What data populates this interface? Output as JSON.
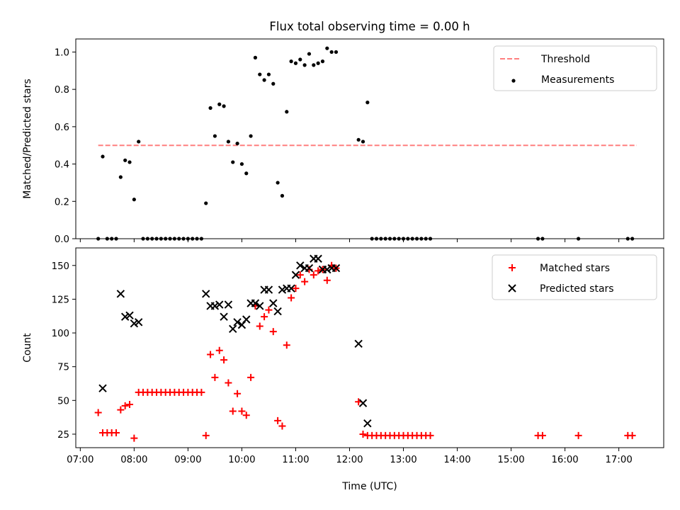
{
  "chart_data": [
    {
      "type": "scatter",
      "title": "Flux total observing time = 0.00 h",
      "xlabel": "",
      "ylabel": "Matched/Predicted stars",
      "xlim": [
        "06:55",
        "17:50"
      ],
      "ylim": [
        0,
        1.07
      ],
      "yticks": [
        0.0,
        0.2,
        0.4,
        0.6,
        0.8,
        1.0
      ],
      "ytick_labels": [
        "0.0",
        "0.2",
        "0.4",
        "0.6",
        "0.8",
        "1.0"
      ],
      "legend_position": "upper right",
      "threshold": {
        "name": "Threshold",
        "value": 0.5,
        "x_range": [
          "07:20",
          "17:20"
        ],
        "color": "#ff7f7f",
        "style": "dashed"
      },
      "series": [
        {
          "name": "Measurements",
          "color": "#000000",
          "marker": "dot",
          "points": [
            [
              "07:20",
              0.0
            ],
            [
              "07:25",
              0.44
            ],
            [
              "07:30",
              0.0
            ],
            [
              "07:35",
              0.0
            ],
            [
              "07:40",
              0.0
            ],
            [
              "07:45",
              0.33
            ],
            [
              "07:50",
              0.42
            ],
            [
              "07:55",
              0.41
            ],
            [
              "08:00",
              0.21
            ],
            [
              "08:05",
              0.52
            ],
            [
              "08:10",
              0.0
            ],
            [
              "08:15",
              0.0
            ],
            [
              "08:20",
              0.0
            ],
            [
              "08:25",
              0.0
            ],
            [
              "08:30",
              0.0
            ],
            [
              "08:35",
              0.0
            ],
            [
              "08:40",
              0.0
            ],
            [
              "08:45",
              0.0
            ],
            [
              "08:50",
              0.0
            ],
            [
              "08:55",
              0.0
            ],
            [
              "09:00",
              0.0
            ],
            [
              "09:05",
              0.0
            ],
            [
              "09:10",
              0.0
            ],
            [
              "09:15",
              0.0
            ],
            [
              "09:20",
              0.19
            ],
            [
              "09:25",
              0.7
            ],
            [
              "09:30",
              0.55
            ],
            [
              "09:35",
              0.72
            ],
            [
              "09:40",
              0.71
            ],
            [
              "09:45",
              0.52
            ],
            [
              "09:50",
              0.41
            ],
            [
              "09:55",
              0.51
            ],
            [
              "10:00",
              0.4
            ],
            [
              "10:05",
              0.35
            ],
            [
              "10:10",
              0.55
            ],
            [
              "10:15",
              0.97
            ],
            [
              "10:20",
              0.88
            ],
            [
              "10:25",
              0.85
            ],
            [
              "10:30",
              0.88
            ],
            [
              "10:35",
              0.83
            ],
            [
              "10:40",
              0.3
            ],
            [
              "10:45",
              0.23
            ],
            [
              "10:50",
              0.68
            ],
            [
              "10:55",
              0.95
            ],
            [
              "11:00",
              0.94
            ],
            [
              "11:05",
              0.96
            ],
            [
              "11:10",
              0.93
            ],
            [
              "11:15",
              0.99
            ],
            [
              "11:20",
              0.93
            ],
            [
              "11:25",
              0.94
            ],
            [
              "11:30",
              0.95
            ],
            [
              "11:35",
              1.02
            ],
            [
              "11:40",
              1.0
            ],
            [
              "11:45",
              1.0
            ],
            [
              "12:10",
              0.53
            ],
            [
              "12:15",
              0.52
            ],
            [
              "12:20",
              0.73
            ],
            [
              "12:25",
              0.0
            ],
            [
              "12:30",
              0.0
            ],
            [
              "12:35",
              0.0
            ],
            [
              "12:40",
              0.0
            ],
            [
              "12:45",
              0.0
            ],
            [
              "12:50",
              0.0
            ],
            [
              "12:55",
              0.0
            ],
            [
              "13:00",
              0.0
            ],
            [
              "13:05",
              0.0
            ],
            [
              "13:10",
              0.0
            ],
            [
              "13:15",
              0.0
            ],
            [
              "13:20",
              0.0
            ],
            [
              "13:25",
              0.0
            ],
            [
              "13:30",
              0.0
            ],
            [
              "15:30",
              0.0
            ],
            [
              "15:35",
              0.0
            ],
            [
              "16:15",
              0.0
            ],
            [
              "17:10",
              0.0
            ],
            [
              "17:15",
              0.0
            ]
          ]
        }
      ]
    },
    {
      "type": "scatter",
      "title": "",
      "xlabel": "Time (UTC)",
      "ylabel": "Count",
      "xlim": [
        "06:55",
        "17:50"
      ],
      "ylim": [
        15,
        163
      ],
      "xticks": [
        "07:00",
        "08:00",
        "09:00",
        "10:00",
        "11:00",
        "12:00",
        "13:00",
        "14:00",
        "15:00",
        "16:00",
        "17:00"
      ],
      "yticks": [
        25,
        50,
        75,
        100,
        125,
        150
      ],
      "ytick_labels": [
        "25",
        "50",
        "75",
        "100",
        "125",
        "150"
      ],
      "legend_position": "upper right",
      "series": [
        {
          "name": "Matched stars",
          "color": "#ff0000",
          "marker": "plus",
          "points": [
            [
              "07:20",
              41
            ],
            [
              "07:25",
              26
            ],
            [
              "07:30",
              26
            ],
            [
              "07:35",
              26
            ],
            [
              "07:40",
              26
            ],
            [
              "07:45",
              43
            ],
            [
              "07:50",
              46
            ],
            [
              "07:55",
              47
            ],
            [
              "08:00",
              22
            ],
            [
              "08:05",
              56
            ],
            [
              "08:10",
              56
            ],
            [
              "08:15",
              56
            ],
            [
              "08:20",
              56
            ],
            [
              "08:25",
              56
            ],
            [
              "08:30",
              56
            ],
            [
              "08:35",
              56
            ],
            [
              "08:40",
              56
            ],
            [
              "08:45",
              56
            ],
            [
              "08:50",
              56
            ],
            [
              "08:55",
              56
            ],
            [
              "09:00",
              56
            ],
            [
              "09:05",
              56
            ],
            [
              "09:10",
              56
            ],
            [
              "09:15",
              56
            ],
            [
              "09:20",
              24
            ],
            [
              "09:25",
              84
            ],
            [
              "09:30",
              67
            ],
            [
              "09:35",
              87
            ],
            [
              "09:40",
              80
            ],
            [
              "09:45",
              63
            ],
            [
              "09:50",
              42
            ],
            [
              "09:55",
              55
            ],
            [
              "10:00",
              42
            ],
            [
              "10:05",
              39
            ],
            [
              "10:10",
              67
            ],
            [
              "10:15",
              120
            ],
            [
              "10:20",
              105
            ],
            [
              "10:25",
              112
            ],
            [
              "10:30",
              117
            ],
            [
              "10:35",
              101
            ],
            [
              "10:40",
              35
            ],
            [
              "10:45",
              31
            ],
            [
              "10:50",
              91
            ],
            [
              "10:55",
              126
            ],
            [
              "11:00",
              133
            ],
            [
              "11:05",
              143
            ],
            [
              "11:10",
              138
            ],
            [
              "11:15",
              147
            ],
            [
              "11:20",
              143
            ],
            [
              "11:25",
              146
            ],
            [
              "11:30",
              147
            ],
            [
              "11:35",
              139
            ],
            [
              "11:40",
              150
            ],
            [
              "11:45",
              148
            ],
            [
              "12:10",
              49
            ],
            [
              "12:15",
              25
            ],
            [
              "12:20",
              24
            ],
            [
              "12:25",
              24
            ],
            [
              "12:30",
              24
            ],
            [
              "12:35",
              24
            ],
            [
              "12:40",
              24
            ],
            [
              "12:45",
              24
            ],
            [
              "12:50",
              24
            ],
            [
              "12:55",
              24
            ],
            [
              "13:00",
              24
            ],
            [
              "13:05",
              24
            ],
            [
              "13:10",
              24
            ],
            [
              "13:15",
              24
            ],
            [
              "13:20",
              24
            ],
            [
              "13:25",
              24
            ],
            [
              "13:30",
              24
            ],
            [
              "15:30",
              24
            ],
            [
              "15:35",
              24
            ],
            [
              "16:15",
              24
            ],
            [
              "17:10",
              24
            ],
            [
              "17:15",
              24
            ]
          ]
        },
        {
          "name": "Predicted stars",
          "color": "#000000",
          "marker": "x",
          "points": [
            [
              "07:25",
              59
            ],
            [
              "07:45",
              129
            ],
            [
              "07:50",
              112
            ],
            [
              "07:55",
              113
            ],
            [
              "08:00",
              107
            ],
            [
              "08:05",
              108
            ],
            [
              "09:20",
              129
            ],
            [
              "09:25",
              120
            ],
            [
              "09:30",
              120
            ],
            [
              "09:35",
              121
            ],
            [
              "09:40",
              112
            ],
            [
              "09:45",
              121
            ],
            [
              "09:50",
              103
            ],
            [
              "09:55",
              108
            ],
            [
              "10:00",
              106
            ],
            [
              "10:05",
              110
            ],
            [
              "10:10",
              122
            ],
            [
              "10:15",
              122
            ],
            [
              "10:20",
              120
            ],
            [
              "10:25",
              132
            ],
            [
              "10:30",
              132
            ],
            [
              "10:35",
              122
            ],
            [
              "10:40",
              116
            ],
            [
              "10:45",
              132
            ],
            [
              "10:50",
              133
            ],
            [
              "10:55",
              133
            ],
            [
              "11:00",
              143
            ],
            [
              "11:05",
              150
            ],
            [
              "11:10",
              148
            ],
            [
              "11:15",
              148
            ],
            [
              "11:20",
              155
            ],
            [
              "11:25",
              155
            ],
            [
              "11:30",
              147
            ],
            [
              "11:35",
              147
            ],
            [
              "11:40",
              148
            ],
            [
              "11:45",
              148
            ],
            [
              "12:10",
              92
            ],
            [
              "12:15",
              48
            ],
            [
              "12:20",
              33
            ]
          ]
        }
      ]
    }
  ]
}
